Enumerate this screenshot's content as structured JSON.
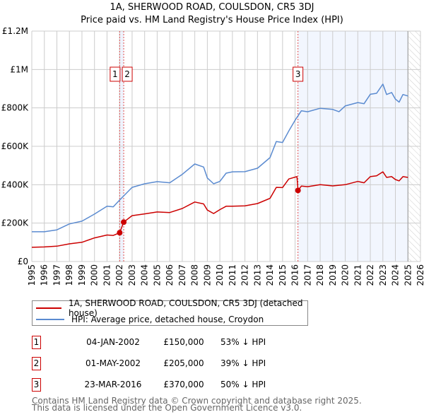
{
  "chart_data": {
    "type": "line",
    "title": "1A, SHERWOOD ROAD, COULSDON, CR5 3DJ",
    "subtitle": "Price paid vs. HM Land Registry's House Price Index (HPI)",
    "xlim": [
      1995,
      2026
    ],
    "ylim": [
      0,
      1200000
    ],
    "y_ticks": [
      0,
      200000,
      400000,
      600000,
      800000,
      1000000,
      1200000
    ],
    "y_tick_labels": [
      "£0",
      "£200K",
      "£400K",
      "£600K",
      "£800K",
      "£1M",
      "£1.2M"
    ],
    "x_ticks": [
      "1995",
      "1996",
      "1997",
      "1998",
      "1999",
      "2000",
      "2001",
      "2002",
      "2003",
      "2004",
      "2005",
      "2006",
      "2007",
      "2008",
      "2009",
      "2010",
      "2011",
      "2012",
      "2013",
      "2014",
      "2015",
      "2016",
      "2017",
      "2018",
      "2019",
      "2020",
      "2021",
      "2022",
      "2023",
      "2024",
      "2025",
      "2026"
    ],
    "grid": true,
    "series": [
      {
        "name": "1A, SHERWOOD ROAD, COULSDON, CR5 3DJ (detached house)",
        "color": "#cc0000",
        "x": [
          1995,
          1996,
          1997,
          1998,
          1999,
          2000,
          2001,
          2001.5,
          2002.01,
          2002.33,
          2003,
          2004,
          2005,
          2006,
          2007,
          2008,
          2008.7,
          2009,
          2009.5,
          2010,
          2010.5,
          2011,
          2012,
          2013,
          2014,
          2014.5,
          2015,
          2015.5,
          2016.15,
          2016.23,
          2016.5,
          2017,
          2018,
          2019,
          2020,
          2021,
          2021.5,
          2022,
          2022.5,
          2023,
          2023.3,
          2023.7,
          2024,
          2024.3,
          2024.6,
          2025
        ],
        "y": [
          74000,
          76000,
          80000,
          92000,
          100000,
          123000,
          138000,
          136000,
          150000,
          205000,
          239000,
          248000,
          258000,
          255000,
          276000,
          310000,
          300000,
          268000,
          250000,
          270000,
          288000,
          288000,
          290000,
          302000,
          329000,
          386000,
          385000,
          430000,
          442000,
          370000,
          393000,
          390000,
          400000,
          394000,
          400000,
          417000,
          410000,
          442000,
          446000,
          467000,
          438000,
          442000,
          427000,
          420000,
          442000,
          438000
        ]
      },
      {
        "name": "HPI: Average price, detached house, Croydon",
        "color": "#5b8bd0",
        "x": [
          1995,
          1996,
          1997,
          1998,
          1999,
          2000,
          2001,
          2001.5,
          2002,
          2003,
          2004,
          2005,
          2006,
          2007,
          2008,
          2008.7,
          2009,
          2009.5,
          2010,
          2010.5,
          2011,
          2012,
          2013,
          2014,
          2014.5,
          2015,
          2015.5,
          2016,
          2016.5,
          2017,
          2018,
          2019,
          2019.5,
          2020,
          2021,
          2021.5,
          2022,
          2022.5,
          2023,
          2023.3,
          2023.7,
          2024,
          2024.3,
          2024.6,
          2025
        ],
        "y": [
          155000,
          155000,
          165000,
          196000,
          210000,
          247000,
          288000,
          285000,
          320000,
          386000,
          405000,
          416000,
          410000,
          454000,
          508000,
          492000,
          435000,
          405000,
          417000,
          460000,
          467000,
          468000,
          486000,
          541000,
          625000,
          620000,
          680000,
          736000,
          785000,
          780000,
          798000,
          792000,
          780000,
          810000,
          828000,
          822000,
          871000,
          876000,
          924000,
          870000,
          880000,
          846000,
          830000,
          870000,
          862000
        ]
      }
    ],
    "sales": [
      {
        "label": "1",
        "x": 2002.01,
        "y": 150000
      },
      {
        "label": "2",
        "x": 2002.33,
        "y": 205000
      },
      {
        "label": "3",
        "x": 2016.23,
        "y": 370000
      }
    ],
    "data_end": 2025.0,
    "legend_placement": "below"
  },
  "legend": [
    {
      "label": "1A, SHERWOOD ROAD, COULSDON, CR5 3DJ (detached house)",
      "color": "#cc0000"
    },
    {
      "label": "HPI: Average price, detached house, Croydon",
      "color": "#5b8bd0"
    }
  ],
  "transactions": [
    {
      "num": "1",
      "date": "04-JAN-2002",
      "price": "£150,000",
      "pct": "53% ↓ HPI"
    },
    {
      "num": "2",
      "date": "01-MAY-2002",
      "price": "£205,000",
      "pct": "39% ↓ HPI"
    },
    {
      "num": "3",
      "date": "23-MAR-2016",
      "price": "£370,000",
      "pct": "50% ↓ HPI"
    }
  ],
  "footer": [
    "Contains HM Land Registry data © Crown copyright and database right 2025.",
    "This data is licensed under the Open Government Licence v3.0."
  ]
}
